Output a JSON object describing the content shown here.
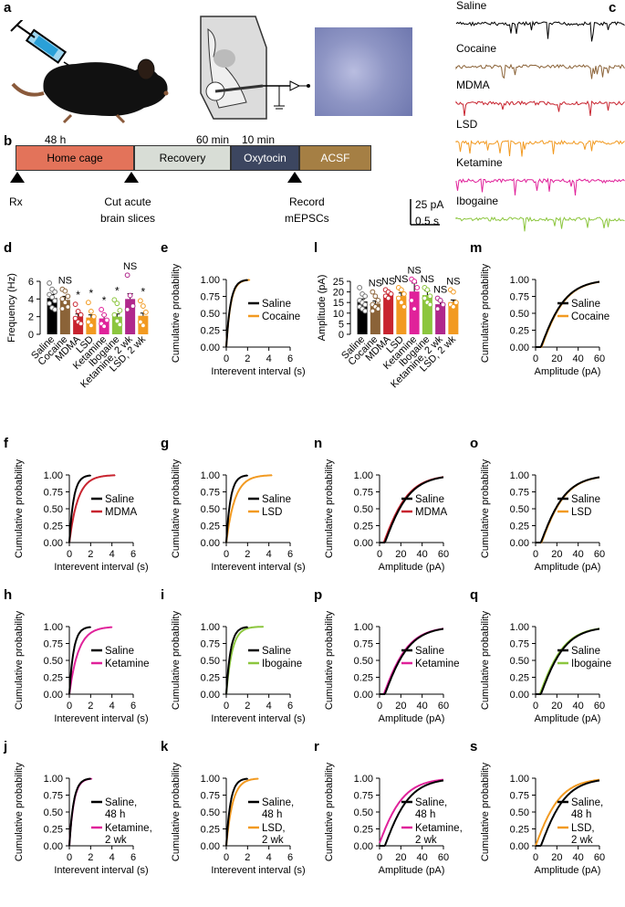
{
  "panel_labels": {
    "a": "a",
    "b": "b",
    "c": "c",
    "d": "d",
    "e": "e",
    "f": "f",
    "g": "g",
    "h": "h",
    "i": "i",
    "j": "j",
    "k": "k",
    "l": "l",
    "m": "m",
    "n": "n",
    "o": "o",
    "p": "p",
    "q": "q",
    "r": "r",
    "s": "s"
  },
  "timeline": {
    "segments": [
      {
        "label": "Home cage",
        "color": "#e3735a",
        "text_color": "#000"
      },
      {
        "label": "Recovery",
        "color": "#d8ddd6",
        "text_color": "#000"
      },
      {
        "label": "Oxytocin",
        "color": "#3c4660",
        "text_color": "#fff"
      },
      {
        "label": "ACSF",
        "color": "#a57f44",
        "text_color": "#fff"
      }
    ],
    "durations": [
      "48 h",
      "60 min",
      "10 min"
    ],
    "events": [
      "Rx",
      "Cut acute\nbrain slices",
      "Record\nmEPSCs"
    ]
  },
  "traces": {
    "items": [
      {
        "label": "Saline",
        "color": "#000000"
      },
      {
        "label": "Cocaine",
        "color": "#8b6338"
      },
      {
        "label": "MDMA",
        "color": "#c8242f"
      },
      {
        "label": "LSD",
        "color": "#f29a21"
      },
      {
        "label": "Ketamine",
        "color": "#e0229a"
      },
      {
        "label": "Ibogaine",
        "color": "#8cc63e"
      }
    ],
    "scale_y": "25 pA",
    "scale_x": "0.5 s"
  },
  "chart_data": [
    {
      "id": "d",
      "type": "bar",
      "ylabel": "Frequency (Hz)",
      "ylim": [
        0,
        6
      ],
      "yticks": [
        0,
        2,
        4,
        6
      ],
      "categories": [
        "Saline",
        "Cocaine",
        "MDMA",
        "LSD",
        "Ketamine",
        "Ibogaine",
        "Ketamine, 2 wk",
        "LSD, 2 wk"
      ],
      "values": [
        4.1,
        3.9,
        2.0,
        1.9,
        1.8,
        2.0,
        4.0,
        2.1
      ],
      "errors": [
        0.4,
        0.4,
        0.3,
        0.3,
        0.4,
        0.3,
        0.6,
        0.3
      ],
      "points": [
        [
          5.8,
          5.1,
          4.8,
          4.5,
          4.2,
          3.8,
          3.5,
          3.0,
          2.8
        ],
        [
          5.1,
          4.9,
          4.3,
          4.0,
          3.6,
          3.1,
          2.9
        ],
        [
          3.4,
          2.6,
          2.2,
          1.8,
          1.4,
          1.2
        ],
        [
          3.6,
          2.6,
          2.0,
          1.4,
          1.0
        ],
        [
          2.8,
          2.2,
          1.6,
          1.2,
          0.9
        ],
        [
          3.9,
          3.5,
          2.7,
          2.2,
          1.5,
          1.1
        ],
        [
          6.7,
          4.4,
          3.2,
          2.8
        ],
        [
          3.8,
          3.2,
          2.5,
          1.4,
          1.0
        ]
      ],
      "colors": [
        "#000000",
        "#8b6338",
        "#c8242f",
        "#f29a21",
        "#e0229a",
        "#8cc63e",
        "#b0288c",
        "#f29a21"
      ],
      "significance": [
        "",
        "NS",
        "*",
        "*",
        "*",
        "*",
        "NS",
        "*"
      ]
    },
    {
      "id": "l",
      "type": "bar",
      "ylabel": "Amplitude (pA)",
      "ylim": [
        0,
        25
      ],
      "yticks": [
        0,
        5,
        10,
        15,
        20,
        25
      ],
      "categories": [
        "Saline",
        "Cocaine",
        "MDMA",
        "LSD",
        "Ketamine",
        "Ibogaine",
        "Ketamine, 2 wk",
        "LSD, 2 wk"
      ],
      "values": [
        15.5,
        14.5,
        18.8,
        18.0,
        20.2,
        18.5,
        14.2,
        15.2
      ],
      "errors": [
        1.2,
        1.2,
        1.0,
        1.5,
        4.0,
        2.0,
        1.5,
        1.0
      ],
      "points": [
        [
          22,
          19,
          18,
          16,
          15,
          14,
          13,
          12,
          11
        ],
        [
          20,
          18,
          16,
          14,
          13,
          12,
          11
        ],
        [
          21,
          20,
          19,
          18,
          17
        ],
        [
          22,
          21,
          19,
          17,
          15,
          13
        ],
        [
          26,
          25,
          22,
          16,
          12
        ],
        [
          22,
          21,
          18,
          17,
          15,
          14
        ],
        [
          17,
          16,
          14,
          12
        ],
        [
          21,
          20,
          15,
          14,
          13
        ]
      ],
      "colors": [
        "#000000",
        "#8b6338",
        "#c8242f",
        "#f29a21",
        "#e0229a",
        "#8cc63e",
        "#b0288c",
        "#f29a21"
      ],
      "significance": [
        "",
        "NS",
        "NS",
        "NS",
        "NS",
        "NS",
        "NS",
        "NS"
      ]
    },
    {
      "id": "e",
      "type": "line",
      "ylabel": "Cumulative probability",
      "xlabel": "Interevent interval (s)",
      "xlim": [
        0,
        6
      ],
      "ylim": [
        0,
        1
      ],
      "xticks": [
        0,
        2,
        4,
        6
      ],
      "yticks": [
        0,
        0.25,
        0.5,
        0.75,
        1.0
      ],
      "series": [
        {
          "name": "Saline",
          "color": "#000000",
          "scale": 0.4,
          "max": 2
        },
        {
          "name": "Cocaine",
          "color": "#f29a21",
          "scale": 0.42,
          "max": 2.2
        }
      ]
    },
    {
      "id": "f",
      "type": "line",
      "ylabel": "Cumulative probability",
      "xlabel": "Interevent interval (s)",
      "xlim": [
        0,
        6
      ],
      "ylim": [
        0,
        1
      ],
      "xticks": [
        0,
        2,
        4,
        6
      ],
      "yticks": [
        0,
        0.25,
        0.5,
        0.75,
        1.0
      ],
      "series": [
        {
          "name": "Saline",
          "color": "#000000",
          "scale": 0.4,
          "max": 2
        },
        {
          "name": "MDMA",
          "color": "#c8242f",
          "scale": 0.8,
          "max": 4.3
        }
      ]
    },
    {
      "id": "g",
      "type": "line",
      "ylabel": "Cumulative probability",
      "xlabel": "Interevent interval (s)",
      "xlim": [
        0,
        6
      ],
      "ylim": [
        0,
        1
      ],
      "xticks": [
        0,
        2,
        4,
        6
      ],
      "yticks": [
        0,
        0.25,
        0.5,
        0.75,
        1.0
      ],
      "series": [
        {
          "name": "Saline",
          "color": "#000000",
          "scale": 0.4,
          "max": 2
        },
        {
          "name": "LSD",
          "color": "#f29a21",
          "scale": 0.8,
          "max": 4.3
        }
      ]
    },
    {
      "id": "h",
      "type": "line",
      "ylabel": "Cumulative probability",
      "xlabel": "Interevent interval (s)",
      "xlim": [
        0,
        6
      ],
      "ylim": [
        0,
        1
      ],
      "xticks": [
        0,
        2,
        4,
        6
      ],
      "yticks": [
        0,
        0.25,
        0.5,
        0.75,
        1.0
      ],
      "series": [
        {
          "name": "Saline",
          "color": "#000000",
          "scale": 0.4,
          "max": 2
        },
        {
          "name": "Ketamine",
          "color": "#e0229a",
          "scale": 0.85,
          "max": 4
        }
      ]
    },
    {
      "id": "i",
      "type": "line",
      "ylabel": "Cumulative probability",
      "xlabel": "Interevent interval (s)",
      "xlim": [
        0,
        6
      ],
      "ylim": [
        0,
        1
      ],
      "xticks": [
        0,
        2,
        4,
        6
      ],
      "yticks": [
        0,
        0.25,
        0.5,
        0.75,
        1.0
      ],
      "series": [
        {
          "name": "Saline",
          "color": "#000000",
          "scale": 0.4,
          "max": 2
        },
        {
          "name": "Ibogaine",
          "color": "#8cc63e",
          "scale": 0.55,
          "max": 3.5
        }
      ]
    },
    {
      "id": "j",
      "type": "line",
      "ylabel": "Cumulative probability",
      "xlabel": "Interevent interval (s)",
      "xlim": [
        0,
        6
      ],
      "ylim": [
        0,
        1
      ],
      "xticks": [
        0,
        2,
        4,
        6
      ],
      "yticks": [
        0,
        0.25,
        0.5,
        0.75,
        1.0
      ],
      "series": [
        {
          "name": "Saline, 48 h",
          "color": "#000000",
          "scale": 0.4,
          "max": 2
        },
        {
          "name": "Ketamine, 2 wk",
          "color": "#e0229a",
          "scale": 0.42,
          "max": 2.1
        }
      ]
    },
    {
      "id": "k",
      "type": "line",
      "ylabel": "Cumulative probability",
      "xlabel": "Interevent interval (s)",
      "xlim": [
        0,
        6
      ],
      "ylim": [
        0,
        1
      ],
      "xticks": [
        0,
        2,
        4,
        6
      ],
      "yticks": [
        0,
        0.25,
        0.5,
        0.75,
        1.0
      ],
      "series": [
        {
          "name": "Saline, 48 h",
          "color": "#000000",
          "scale": 0.4,
          "max": 2
        },
        {
          "name": "LSD, 2 wk",
          "color": "#f29a21",
          "scale": 0.6,
          "max": 3
        }
      ]
    },
    {
      "id": "m",
      "type": "line",
      "ylabel": "Cumulative probability",
      "xlabel": "Amplitude (pA)",
      "xlim": [
        0,
        60
      ],
      "ylim": [
        0,
        1
      ],
      "xticks": [
        0,
        20,
        40,
        60
      ],
      "yticks": [
        0,
        0.25,
        0.5,
        0.75,
        1.0
      ],
      "series": [
        {
          "name": "Saline",
          "color": "#000000",
          "mode": "amp",
          "shift": 0
        },
        {
          "name": "Cocaine",
          "color": "#f29a21",
          "mode": "amp",
          "shift": 0.5
        }
      ]
    },
    {
      "id": "n",
      "type": "line",
      "ylabel": "Cumulative probability",
      "xlabel": "Amplitude (pA)",
      "xlim": [
        0,
        60
      ],
      "ylim": [
        0,
        1
      ],
      "xticks": [
        0,
        20,
        40,
        60
      ],
      "yticks": [
        0,
        0.25,
        0.5,
        0.75,
        1.0
      ],
      "series": [
        {
          "name": "Saline",
          "color": "#000000",
          "mode": "amp",
          "shift": 0
        },
        {
          "name": "MDMA",
          "color": "#c8242f",
          "mode": "amp",
          "shift": -1
        }
      ]
    },
    {
      "id": "o",
      "type": "line",
      "ylabel": "Cumulative probability",
      "xlabel": "Amplitude (pA)",
      "xlim": [
        0,
        60
      ],
      "ylim": [
        0,
        1
      ],
      "xticks": [
        0,
        20,
        40,
        60
      ],
      "yticks": [
        0,
        0.25,
        0.5,
        0.75,
        1.0
      ],
      "series": [
        {
          "name": "Saline",
          "color": "#000000",
          "mode": "amp",
          "shift": 0
        },
        {
          "name": "LSD",
          "color": "#f29a21",
          "mode": "amp",
          "shift": 0.5
        }
      ]
    },
    {
      "id": "p",
      "type": "line",
      "ylabel": "Cumulative probability",
      "xlabel": "Amplitude (pA)",
      "xlim": [
        0,
        60
      ],
      "ylim": [
        0,
        1
      ],
      "xticks": [
        0,
        20,
        40,
        60
      ],
      "yticks": [
        0,
        0.25,
        0.5,
        0.75,
        1.0
      ],
      "series": [
        {
          "name": "Saline",
          "color": "#000000",
          "mode": "amp",
          "shift": 0
        },
        {
          "name": "Ketamine",
          "color": "#e0229a",
          "mode": "amp",
          "shift": -1
        }
      ]
    },
    {
      "id": "q",
      "type": "line",
      "ylabel": "Cumulative probability",
      "xlabel": "Amplitude (pA)",
      "xlim": [
        0,
        60
      ],
      "ylim": [
        0,
        1
      ],
      "xticks": [
        0,
        20,
        40,
        60
      ],
      "yticks": [
        0,
        0.25,
        0.5,
        0.75,
        1.0
      ],
      "series": [
        {
          "name": "Saline",
          "color": "#000000",
          "mode": "amp",
          "shift": 0
        },
        {
          "name": "Ibogaine",
          "color": "#8cc63e",
          "mode": "amp",
          "shift": -1
        }
      ]
    },
    {
      "id": "r",
      "type": "line",
      "ylabel": "Cumulative probability",
      "xlabel": "Amplitude (pA)",
      "xlim": [
        0,
        60
      ],
      "ylim": [
        0,
        1
      ],
      "xticks": [
        0,
        20,
        40,
        60
      ],
      "yticks": [
        0,
        0.25,
        0.5,
        0.75,
        1.0
      ],
      "series": [
        {
          "name": "Saline, 48 h",
          "color": "#000000",
          "mode": "amp",
          "shift": 0
        },
        {
          "name": "Ketamine, 2 wk",
          "color": "#e0229a",
          "mode": "amp",
          "shift": -6
        }
      ]
    },
    {
      "id": "s",
      "type": "line",
      "ylabel": "Cumulative probability",
      "xlabel": "Amplitude (pA)",
      "xlim": [
        0,
        60
      ],
      "ylim": [
        0,
        1
      ],
      "xticks": [
        0,
        20,
        40,
        60
      ],
      "yticks": [
        0,
        0.25,
        0.5,
        0.75,
        1.0
      ],
      "series": [
        {
          "name": "Saline, 48 h",
          "color": "#000000",
          "mode": "amp",
          "shift": 0
        },
        {
          "name": "LSD, 2 wk",
          "color": "#f29a21",
          "mode": "amp",
          "shift": -5
        }
      ]
    }
  ]
}
